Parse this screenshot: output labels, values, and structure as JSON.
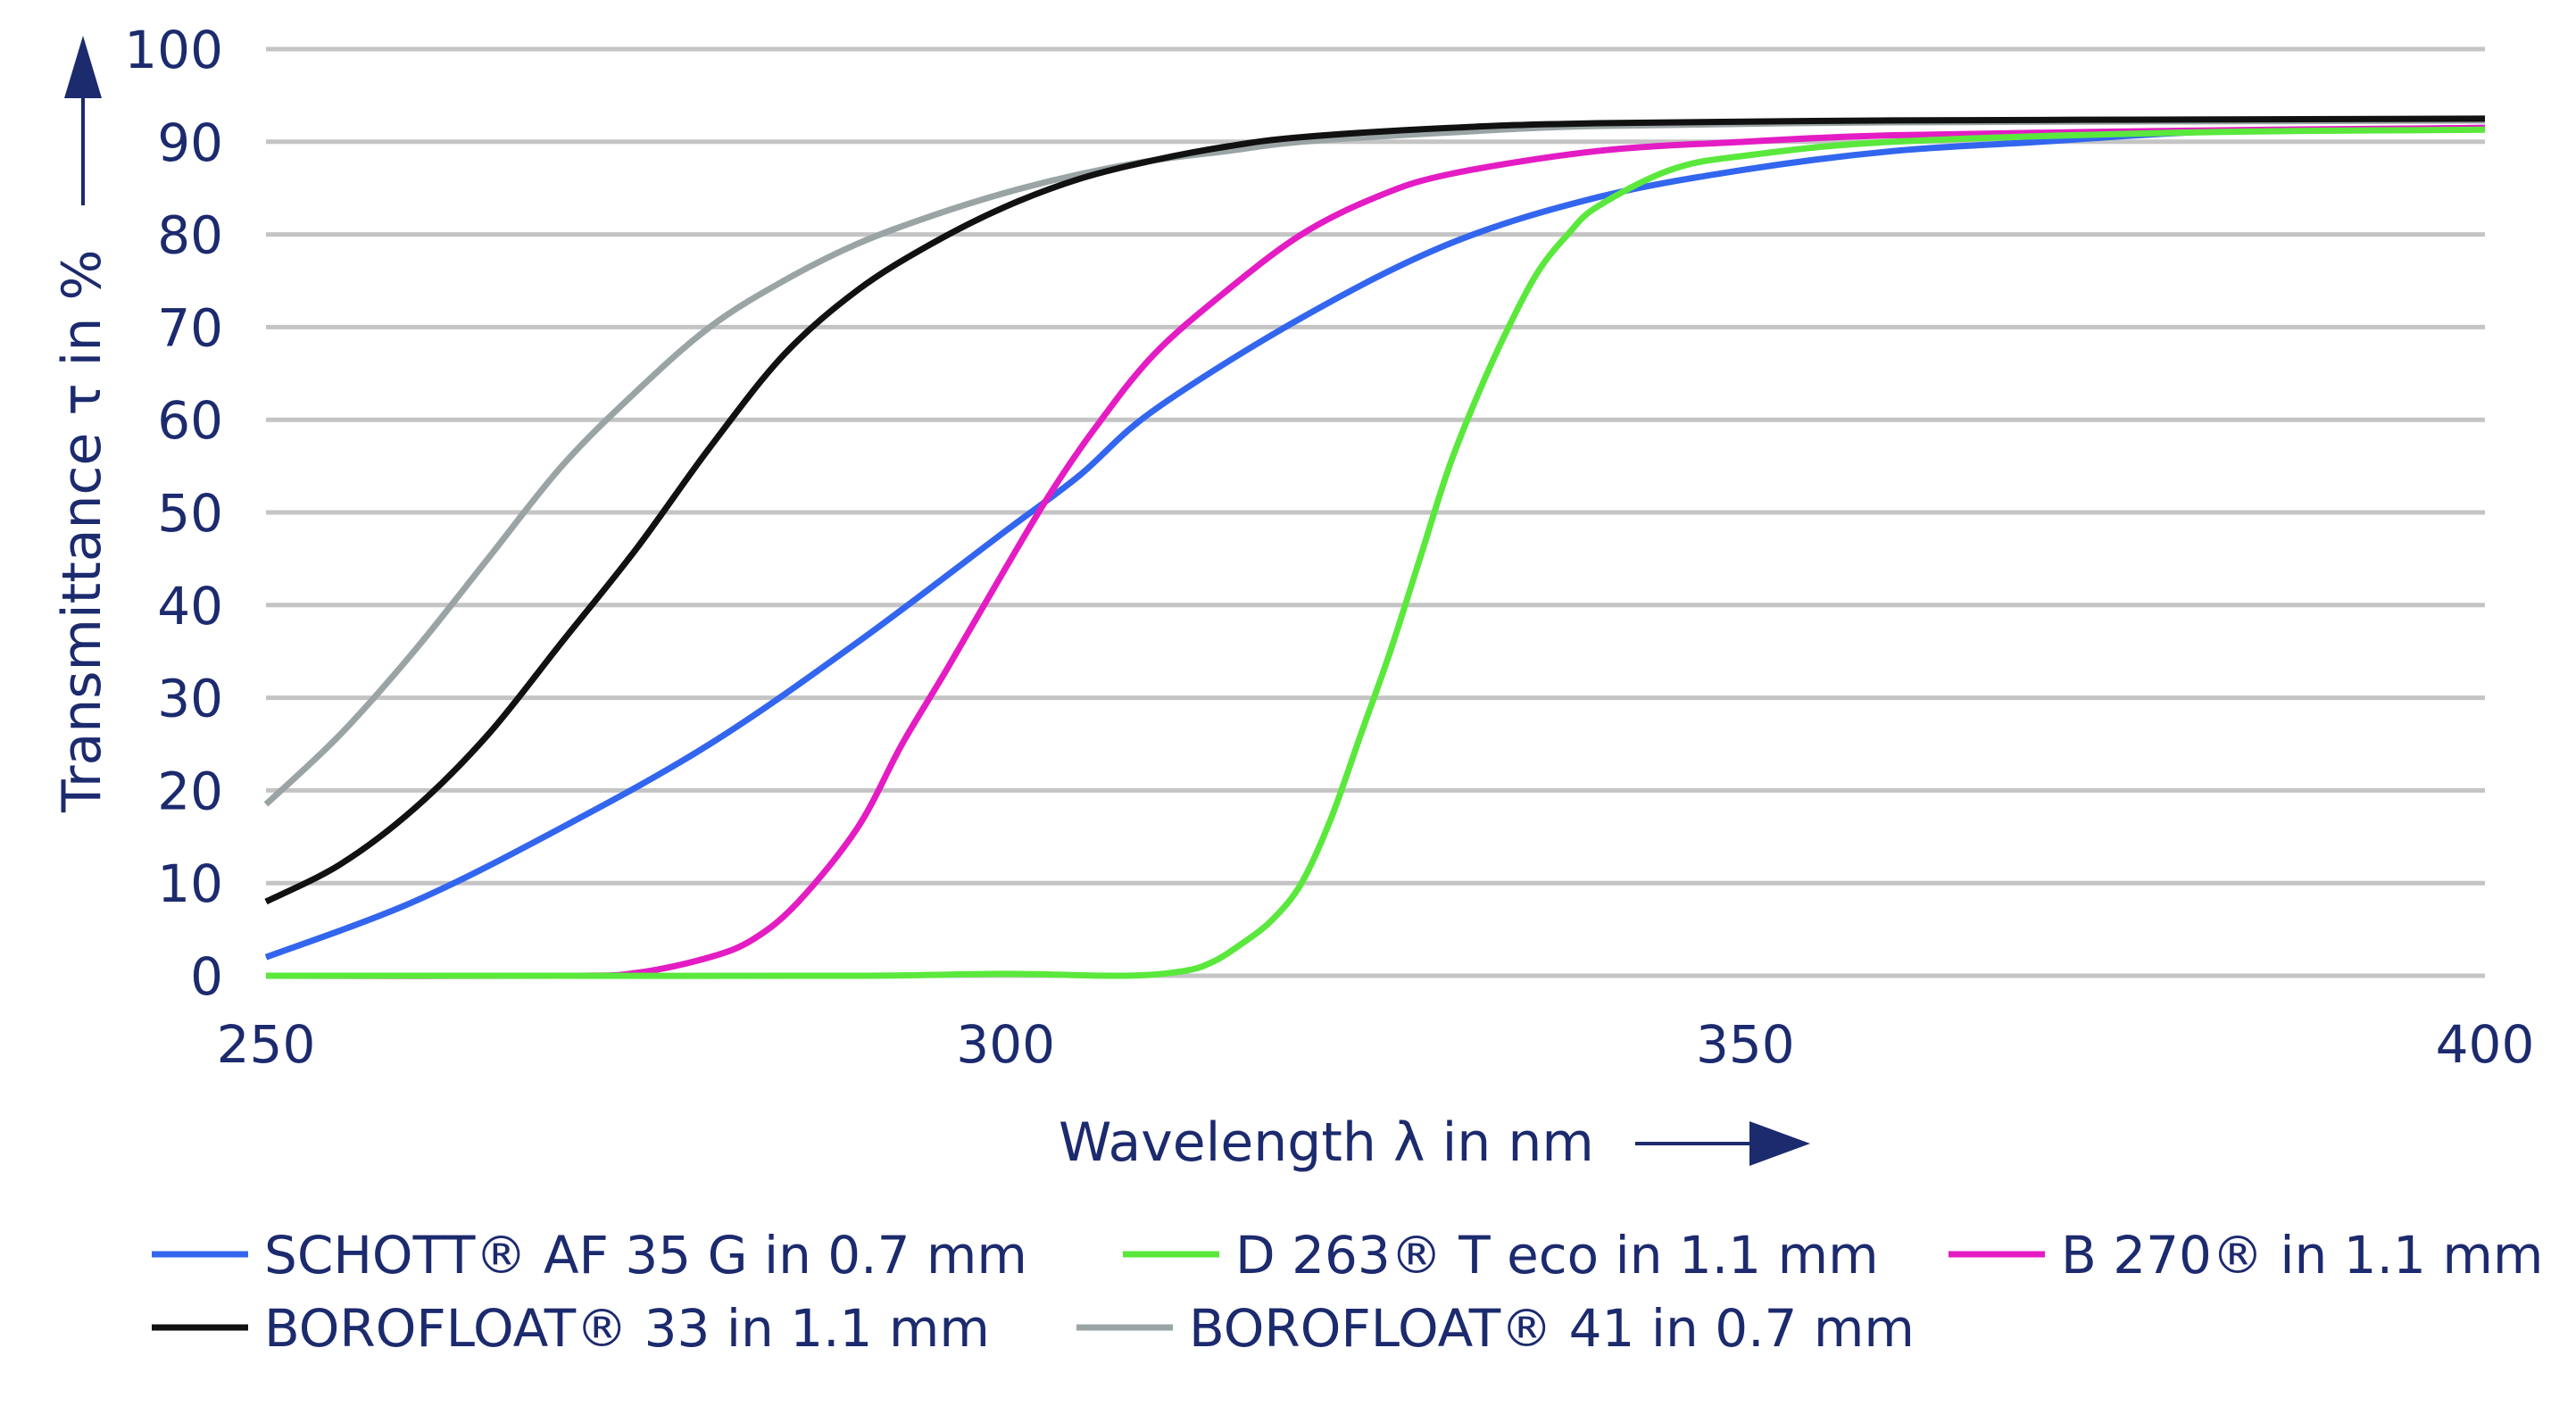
{
  "chart_data": {
    "type": "line",
    "title": "",
    "xlabel": "Wavelength λ in nm",
    "ylabel": "Transmittance τ in %",
    "xlim": [
      250,
      400
    ],
    "ylim": [
      0,
      100
    ],
    "xticks": [
      250,
      300,
      350,
      400
    ],
    "yticks": [
      0,
      10,
      20,
      30,
      40,
      50,
      60,
      70,
      80,
      90,
      100
    ],
    "grid": "horizontal",
    "legend_placement": "bottom",
    "colors": {
      "text": "#1c2a6e",
      "grid": "#c4c4c4"
    },
    "series": [
      {
        "name": "SCHOTT® AF 35 G in 0.7 mm",
        "color": "#3366ee",
        "x": [
          250,
          260,
          270,
          280,
          290,
          300,
          305,
          310,
          320,
          330,
          340,
          350,
          360,
          370,
          380,
          390,
          400
        ],
        "y": [
          2,
          8,
          16,
          25,
          36,
          48,
          54,
          61,
          71,
          79,
          84,
          87,
          89,
          90,
          91,
          91.3,
          91.5
        ]
      },
      {
        "name": "D 263® T eco in 1.1 mm",
        "color": "#5ae83c",
        "x": [
          250,
          270,
          290,
          300,
          308,
          312,
          314,
          316,
          318,
          320,
          322,
          324,
          326,
          328,
          330,
          332,
          334,
          336,
          338,
          340,
          345,
          350,
          360,
          380,
          400
        ],
        "y": [
          0,
          0,
          0,
          0.2,
          0,
          0.5,
          1.5,
          3.5,
          6,
          10,
          17,
          26,
          35,
          45,
          55,
          63,
          70,
          76,
          80,
          83,
          87,
          88.5,
          90,
          91,
          91.3
        ]
      },
      {
        "name": "B 270® in 1.1 mm",
        "color": "#e41cc4",
        "x": [
          250,
          270,
          275,
          280,
          283,
          286,
          290,
          293,
          296,
          300,
          303,
          306,
          310,
          315,
          320,
          325,
          330,
          340,
          350,
          360,
          380,
          400
        ],
        "y": [
          0,
          0,
          0.3,
          2,
          4,
          8,
          16,
          25,
          33,
          44,
          52,
          59,
          67,
          74,
          80,
          84,
          86.5,
          89,
          90,
          90.7,
          91.2,
          91.5
        ]
      },
      {
        "name": "BOROFLOAT® 33 in 1.1 mm",
        "color": "#111111",
        "x": [
          250,
          255,
          260,
          265,
          270,
          275,
          280,
          285,
          290,
          295,
          300,
          305,
          310,
          315,
          320,
          330,
          340,
          360,
          380,
          400
        ],
        "y": [
          8,
          12,
          18,
          26,
          36,
          46,
          57,
          67,
          74,
          79,
          83,
          86,
          88,
          89.5,
          90.5,
          91.5,
          92,
          92.3,
          92.4,
          92.5
        ]
      },
      {
        "name": "BOROFLOAT® 41 in 0.7 mm",
        "color": "#9aa4a4",
        "x": [
          250,
          255,
          260,
          265,
          270,
          275,
          280,
          285,
          290,
          295,
          300,
          305,
          310,
          315,
          320,
          330,
          340,
          360,
          380,
          400
        ],
        "y": [
          18.5,
          26,
          35,
          45,
          55,
          63,
          70,
          75,
          79,
          82,
          84.5,
          86.5,
          88,
          89,
          90,
          91,
          91.7,
          92.1,
          92.2,
          92.3
        ]
      }
    ]
  }
}
